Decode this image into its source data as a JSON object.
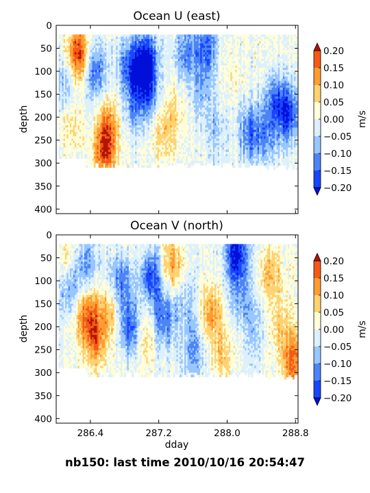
{
  "footer": "nb150: last time 2010/10/16 20:54:47",
  "colorbar": {
    "label": "m/s",
    "levels": [
      -0.2,
      -0.15,
      -0.1,
      -0.05,
      0.0,
      0.05,
      0.1,
      0.15,
      0.2
    ],
    "tick_labels": [
      "0.20",
      "0.15",
      "0.10",
      "0.05",
      "0.00",
      "−0.05",
      "−0.10",
      "−0.15",
      "−0.20"
    ],
    "colors": [
      "#0010d8",
      "#1846ff",
      "#4c84f8",
      "#98c6ff",
      "#dcf0ff",
      "#fffed8",
      "#ffd272",
      "#ff9c32",
      "#f45a16",
      "#b21400"
    ]
  },
  "chart_data": [
    {
      "type": "heatmap",
      "title": "Ocean U (east)",
      "ylabel": "depth",
      "xlabel": "",
      "colorbar_label": "m/s",
      "ylim": [
        410,
        0
      ],
      "xlim": [
        286.0,
        288.83
      ],
      "yticks": [
        "0",
        "50",
        "100",
        "150",
        "200",
        "250",
        "300",
        "350",
        "400"
      ],
      "xticks": [
        "286.4",
        "287.2",
        "288.0",
        "288.8"
      ],
      "depth_range": [
        20,
        290
      ],
      "blobs": [
        {
          "x": 286.25,
          "y": 60,
          "v": 0.22
        },
        {
          "x": 286.18,
          "y": 220,
          "v": 0.06
        },
        {
          "x": 286.6,
          "y": 220,
          "v": 0.13
        },
        {
          "x": 286.55,
          "y": 280,
          "v": 0.16
        },
        {
          "x": 286.45,
          "y": 95,
          "v": -0.14
        },
        {
          "x": 286.85,
          "y": 90,
          "v": -0.16
        },
        {
          "x": 286.9,
          "y": 180,
          "v": -0.08
        },
        {
          "x": 287.04,
          "y": 70,
          "v": -0.22
        },
        {
          "x": 287.05,
          "y": 140,
          "v": -0.16
        },
        {
          "x": 287.25,
          "y": 230,
          "v": 0.08
        },
        {
          "x": 287.4,
          "y": 180,
          "v": 0.04
        },
        {
          "x": 287.5,
          "y": 60,
          "v": -0.12
        },
        {
          "x": 287.7,
          "y": 140,
          "v": -0.08
        },
        {
          "x": 287.75,
          "y": 45,
          "v": -0.15
        },
        {
          "x": 287.85,
          "y": 230,
          "v": -0.06
        },
        {
          "x": 288.0,
          "y": 100,
          "v": 0.03
        },
        {
          "x": 288.25,
          "y": 230,
          "v": -0.14
        },
        {
          "x": 288.55,
          "y": 160,
          "v": -0.12
        },
        {
          "x": 288.7,
          "y": 190,
          "v": -0.18
        },
        {
          "x": 288.45,
          "y": 240,
          "v": -0.11
        },
        {
          "x": 286.1,
          "y": 120,
          "v": -0.08
        }
      ]
    },
    {
      "type": "heatmap",
      "title": "Ocean V (north)",
      "ylabel": "depth",
      "xlabel": "dday",
      "colorbar_label": "m/s",
      "ylim": [
        410,
        0
      ],
      "xlim": [
        286.0,
        288.83
      ],
      "yticks": [
        "0",
        "50",
        "100",
        "150",
        "200",
        "250",
        "300",
        "350",
        "400"
      ],
      "xticks": [
        "286.4",
        "287.2",
        "288.0",
        "288.8"
      ],
      "depth_range": [
        20,
        290
      ],
      "blobs": [
        {
          "x": 286.1,
          "y": 60,
          "v": 0.07
        },
        {
          "x": 286.15,
          "y": 110,
          "v": -0.12
        },
        {
          "x": 286.35,
          "y": 170,
          "v": 0.16
        },
        {
          "x": 286.45,
          "y": 230,
          "v": 0.13
        },
        {
          "x": 286.35,
          "y": 60,
          "v": -0.1
        },
        {
          "x": 286.6,
          "y": 170,
          "v": 0.1
        },
        {
          "x": 286.75,
          "y": 100,
          "v": -0.14
        },
        {
          "x": 286.85,
          "y": 200,
          "v": -0.16
        },
        {
          "x": 287.1,
          "y": 90,
          "v": -0.17
        },
        {
          "x": 287.05,
          "y": 220,
          "v": 0.06
        },
        {
          "x": 287.25,
          "y": 180,
          "v": -0.14
        },
        {
          "x": 287.35,
          "y": 60,
          "v": 0.12
        },
        {
          "x": 287.5,
          "y": 150,
          "v": -0.06
        },
        {
          "x": 287.6,
          "y": 250,
          "v": -0.1
        },
        {
          "x": 287.8,
          "y": 170,
          "v": 0.12
        },
        {
          "x": 288.1,
          "y": 40,
          "v": -0.22
        },
        {
          "x": 288.15,
          "y": 130,
          "v": -0.08
        },
        {
          "x": 288.3,
          "y": 200,
          "v": -0.06
        },
        {
          "x": 288.5,
          "y": 80,
          "v": 0.1
        },
        {
          "x": 288.6,
          "y": 190,
          "v": 0.07
        },
        {
          "x": 288.75,
          "y": 270,
          "v": 0.15
        },
        {
          "x": 287.95,
          "y": 260,
          "v": 0.08
        }
      ]
    }
  ]
}
